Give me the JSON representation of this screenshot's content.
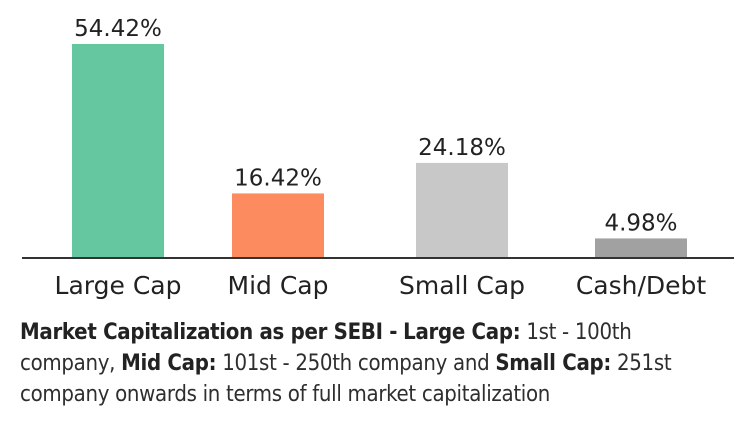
{
  "chart_data": {
    "type": "bar",
    "categories": [
      "Large Cap",
      "Mid Cap",
      "Small Cap",
      "Cash/Debt"
    ],
    "values": [
      54.42,
      16.42,
      24.18,
      4.98
    ],
    "value_labels": [
      "54.42%",
      "16.42%",
      "24.18%",
      "4.98%"
    ],
    "colors": [
      "#65c79f",
      "#fc8c5f",
      "#c8c8c8",
      "#a1a1a1"
    ],
    "ylim": [
      0,
      54.42
    ],
    "grid": false,
    "legend": "none"
  },
  "note": {
    "heading": "Market Capitalization as per SEBI -",
    "large_term": "Large Cap:",
    "large_def": "1st - 100th company,",
    "mid_term": "Mid Cap:",
    "mid_def": "101st - 250th company and",
    "small_term": "Small Cap:",
    "small_def": "251st company onwards in terms of full market capitalization"
  }
}
